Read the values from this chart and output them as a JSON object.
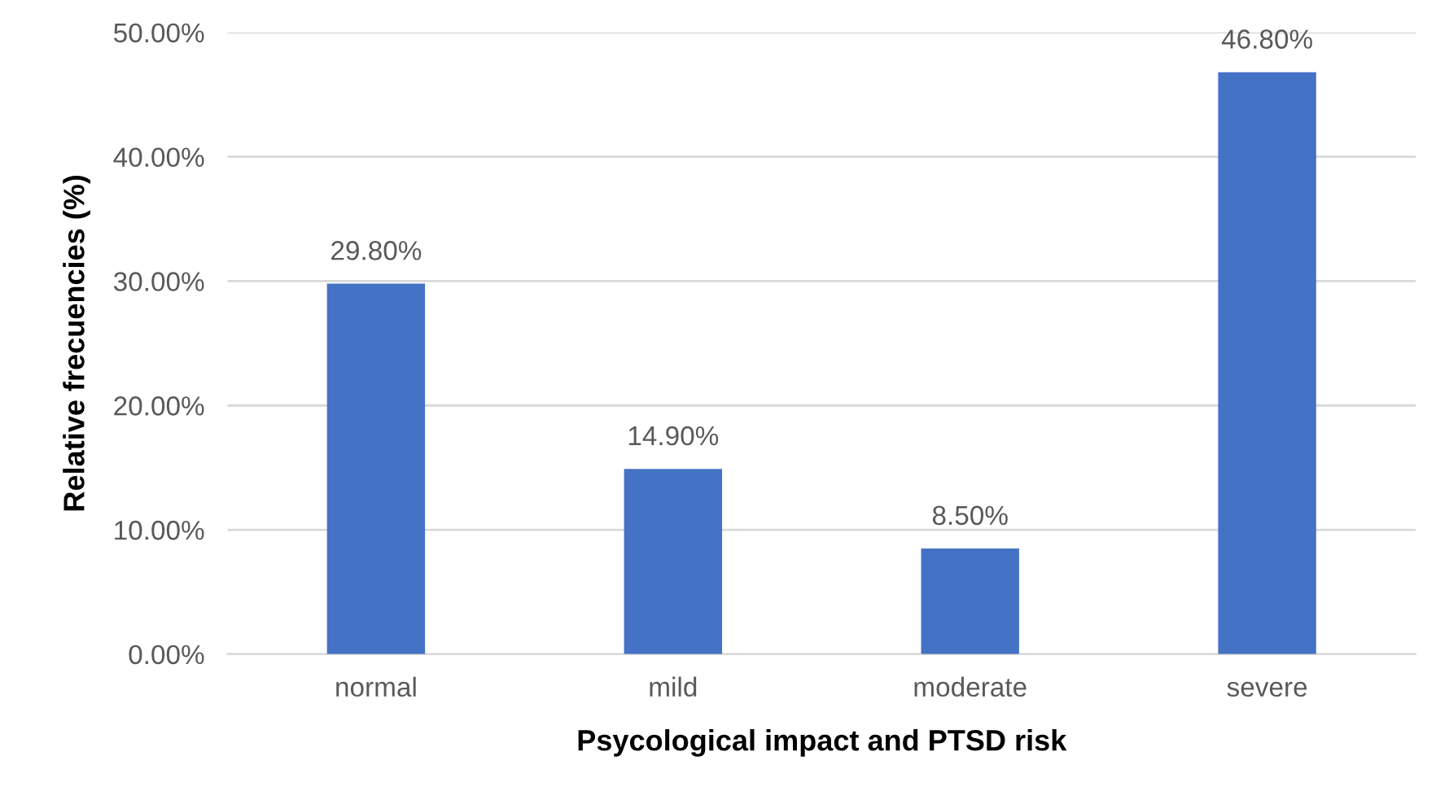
{
  "chart_data": {
    "type": "bar",
    "xlabel": "Psycological impact and PTSD risk",
    "ylabel": "Relative frecuencies (%)",
    "categories": [
      "normal",
      "mild",
      "moderate",
      "severe"
    ],
    "values": [
      29.8,
      14.9,
      8.5,
      46.8
    ],
    "value_labels": [
      "29.80%",
      "14.90%",
      "8.50%",
      "46.80%"
    ],
    "color": "#4472c4",
    "ylim": [
      0,
      50
    ],
    "yticks": [
      {
        "value": 0,
        "label": "0.00%"
      },
      {
        "value": 10,
        "label": "10.00%"
      },
      {
        "value": 20,
        "label": "20.00%"
      },
      {
        "value": 30,
        "label": "30.00%"
      },
      {
        "value": 40,
        "label": "40.00%"
      },
      {
        "value": 50,
        "label": "50.00%"
      }
    ],
    "grid": "y"
  }
}
